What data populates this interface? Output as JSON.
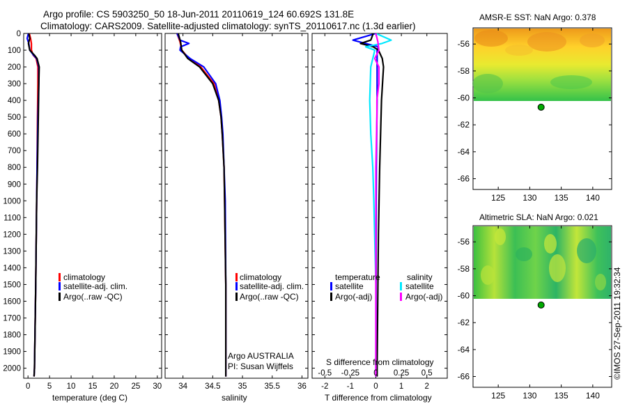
{
  "title": {
    "line1": "Argo profile: CS 5903250_50 18-Jun-2011 20110619_124 60.692S 131.8E",
    "line2": "Climatology: CARS2009. Satellite-adjusted climatology: synTS_20110617.nc (1.3d earlier)"
  },
  "colors": {
    "climatology": "#ff0000",
    "satellite": "#0000ff",
    "argo": "#000000",
    "salinity_satellite": "#00e8ff",
    "salinity_argo": "#ff00ff",
    "station_dot": "#00aa00"
  },
  "chart_data": [
    {
      "type": "line",
      "name": "temperature-profile",
      "xlabel": "temperature (deg C)",
      "ylabel": "",
      "xlim": [
        -1,
        31
      ],
      "ylim": [
        2060,
        0
      ],
      "xticks": [
        0,
        5,
        10,
        15,
        20,
        25,
        30
      ],
      "yticks": [
        0,
        100,
        200,
        300,
        400,
        500,
        600,
        700,
        800,
        900,
        1000,
        1100,
        1200,
        1300,
        1400,
        1500,
        1600,
        1700,
        1800,
        1900,
        2000
      ],
      "legend": [
        "climatology",
        "satellite-adj. clim.",
        "Argo(..raw -QC)"
      ],
      "series": [
        {
          "name": "climatology",
          "color_key": "climatology",
          "depth": [
            0,
            30,
            60,
            100,
            130,
            150,
            200,
            300,
            500,
            800,
            1000,
            1500,
            2000,
            2050
          ],
          "values": [
            0.3,
            0.6,
            0.8,
            0.8,
            1.2,
            1.9,
            2.3,
            2.3,
            2.2,
            2.1,
            2.0,
            1.8,
            1.5,
            1.4
          ]
        },
        {
          "name": "satellite-adj. clim.",
          "color_key": "satellite",
          "depth": [
            0,
            30,
            60,
            100,
            130,
            150,
            200,
            300,
            500,
            800,
            1000,
            1500,
            2000,
            2050
          ],
          "values": [
            0.1,
            -0.2,
            0.2,
            0.4,
            1.3,
            2.0,
            2.5,
            2.5,
            2.3,
            2.1,
            2.0,
            1.8,
            1.5,
            1.4
          ]
        },
        {
          "name": "Argo(..raw -QC)",
          "color_key": "argo",
          "depth": [
            0,
            30,
            60,
            100,
            130,
            150,
            200,
            300,
            500,
            800,
            1000,
            1500,
            2000,
            2050
          ],
          "values": [
            0.2,
            0.4,
            0.1,
            0.4,
            1.5,
            2.1,
            2.6,
            2.5,
            2.4,
            2.2,
            2.0,
            1.8,
            1.5,
            1.4
          ]
        }
      ]
    },
    {
      "type": "line",
      "name": "salinity-profile",
      "xlabel": "salinity",
      "xlim": [
        33.7,
        36.1
      ],
      "ylim": [
        2060,
        0
      ],
      "xticks": [
        34,
        34.5,
        35,
        35.5,
        36
      ],
      "xtick_labels": [
        "34",
        "34.5",
        "35",
        "35.5",
        "36"
      ],
      "legend": [
        "climatology",
        "satellite-adj. clim.",
        "Argo(..raw -QC)"
      ],
      "annotation": {
        "line1": "Argo AUSTRALIA",
        "line2": "PI: Susan Wijffels"
      },
      "series": [
        {
          "name": "climatology",
          "color_key": "climatology",
          "depth": [
            0,
            50,
            100,
            150,
            200,
            300,
            400,
            500,
            600,
            800,
            1000,
            1500,
            2000,
            2050
          ],
          "values": [
            33.9,
            33.95,
            33.98,
            34.1,
            34.3,
            34.52,
            34.6,
            34.64,
            34.66,
            34.69,
            34.7,
            34.72,
            34.72,
            34.72
          ]
        },
        {
          "name": "satellite-adj. clim.",
          "color_key": "satellite",
          "depth": [
            0,
            40,
            60,
            80,
            100,
            150,
            200,
            300,
            400,
            500,
            600,
            800,
            1000,
            1500,
            2000,
            2050
          ],
          "values": [
            33.9,
            33.95,
            34.1,
            33.96,
            33.95,
            34.12,
            34.35,
            34.55,
            34.62,
            34.65,
            34.67,
            34.69,
            34.71,
            34.72,
            34.72,
            34.72
          ]
        },
        {
          "name": "Argo(..raw -QC)",
          "color_key": "argo",
          "depth": [
            0,
            50,
            100,
            150,
            200,
            300,
            400,
            500,
            600,
            800,
            1000,
            1500,
            2000,
            2050
          ],
          "values": [
            33.92,
            33.96,
            33.98,
            34.08,
            34.28,
            34.5,
            34.6,
            34.64,
            34.66,
            34.69,
            34.7,
            34.72,
            34.72,
            34.72
          ]
        }
      ]
    },
    {
      "type": "line",
      "name": "difference-profile",
      "xlabel": "T difference from climatology",
      "xlabel_top": "S difference from climatology",
      "xlim": [
        -2.5,
        2.8
      ],
      "ylim": [
        2060,
        0
      ],
      "xticks": [
        -2,
        -1,
        0,
        1,
        2
      ],
      "top_ticks": [
        -0.5,
        -0.25,
        0,
        0.25,
        0.5
      ],
      "top_tick_labels": [
        "-0.5",
        "-0.25",
        "0",
        "0.25",
        "0.5"
      ],
      "legend_title_temperature": "temperature",
      "legend_title_salinity": "salinity",
      "legend_temperature": [
        "satellite",
        "Argo(-adj)"
      ],
      "legend_salinity": [
        "satellite",
        "Argo(-adj)"
      ],
      "series": [
        {
          "name": "temperature satellite",
          "color_key": "satellite",
          "depth": [
            0,
            40,
            60,
            80,
            100,
            150,
            200,
            400,
            800,
            1200,
            2000,
            2050
          ],
          "values": [
            0,
            -0.9,
            -0.4,
            0.1,
            0.05,
            0.05,
            0.05,
            0.05,
            0.02,
            0.01,
            0,
            0
          ]
        },
        {
          "name": "temperature Argo",
          "color_key": "argo",
          "depth": [
            0,
            40,
            60,
            80,
            100,
            150,
            200,
            400,
            800,
            1200,
            2000,
            2050
          ],
          "values": [
            -0.1,
            -0.2,
            -0.6,
            -0.1,
            0.1,
            0.25,
            0.3,
            0.22,
            0.15,
            0.1,
            0.05,
            0.05
          ]
        },
        {
          "name": "salinity satellite",
          "color_key": "salinity_satellite",
          "depth": [
            0,
            40,
            60,
            80,
            100,
            150,
            200,
            400,
            600,
            800,
            1000,
            1500,
            2000,
            2050
          ],
          "values": [
            0,
            0.15,
            0.06,
            -0.1,
            -0.01,
            -0.03,
            -0.05,
            -0.06,
            -0.05,
            -0.03,
            -0.02,
            0,
            0,
            0
          ]
        },
        {
          "name": "salinity Argo",
          "color_key": "salinity_argo",
          "depth": [
            0,
            50,
            100,
            150,
            200,
            300,
            400,
            500,
            800,
            1000,
            2000,
            2050
          ],
          "values": [
            0,
            0.02,
            0.03,
            -0.01,
            0.03,
            0.03,
            0.01,
            0.01,
            0,
            0,
            0,
            0
          ]
        }
      ]
    },
    {
      "type": "heatmap",
      "name": "amsr-sst-map",
      "title": "AMSR-E SST: NaN Argo: 0.378",
      "xlim": [
        121,
        143
      ],
      "ylim": [
        -66.8,
        -54.8
      ],
      "xticks": [
        125,
        130,
        135,
        140
      ],
      "yticks": [
        -56,
        -58,
        -60,
        -62,
        -64,
        -66
      ],
      "ytick_labels": [
        "-56",
        "-58",
        "-60",
        "-62",
        "-64",
        "-66"
      ],
      "data_extent_lat": [
        -60,
        -54.8
      ],
      "marker": {
        "lon": 131.8,
        "lat": -60.692
      }
    },
    {
      "type": "heatmap",
      "name": "altimetric-sla-map",
      "title": "Altimetric SLA: NaN Argo: 0.021",
      "xlim": [
        121,
        143
      ],
      "ylim": [
        -66.8,
        -54.8
      ],
      "xticks": [
        125,
        130,
        135,
        140
      ],
      "yticks": [
        -56,
        -58,
        -60,
        -62,
        -64,
        -66
      ],
      "ytick_labels": [
        "-56",
        "-58",
        "-60",
        "-62",
        "-64",
        "-66"
      ],
      "data_extent_lat": [
        -60,
        -54.8
      ],
      "marker": {
        "lon": 131.8,
        "lat": -60.692
      }
    }
  ],
  "footer": "©IMOS 27-Sep-2011 19:32:34"
}
